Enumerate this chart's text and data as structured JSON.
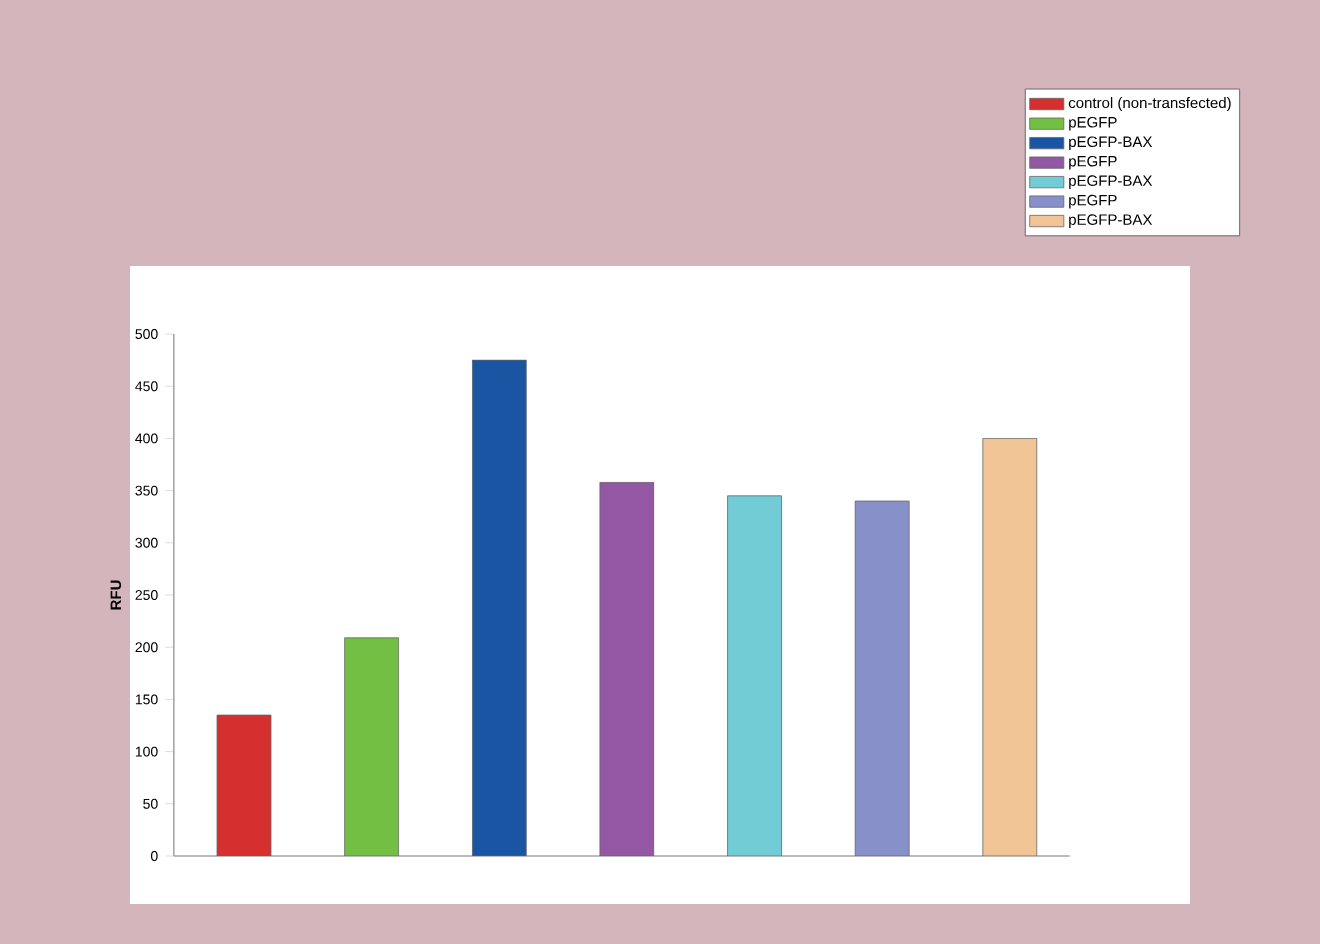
{
  "chart_data": {
    "type": "bar",
    "ylabel": "RFU",
    "categories": [
      null,
      null,
      null,
      null,
      null,
      null,
      null
    ],
    "series": [
      {
        "name": "control (non-transfected)",
        "color": "#d62f2f",
        "values": [
          135,
          null,
          null,
          null,
          null,
          null,
          null
        ]
      },
      {
        "name": "pEGFP",
        "color": "#72bf44",
        "values": [
          null,
          209,
          null,
          null,
          null,
          null,
          null
        ]
      },
      {
        "name": "pEGFP-BAX",
        "color": "#1a55a3",
        "values": [
          null,
          null,
          475,
          null,
          null,
          null,
          null
        ]
      },
      {
        "name": "pEGFP",
        "color": "#9457a4",
        "values": [
          null,
          null,
          null,
          358,
          null,
          null,
          null
        ]
      },
      {
        "name": "pEGFP-BAX",
        "color": "#72ccd6",
        "values": [
          null,
          null,
          null,
          null,
          345,
          null,
          null
        ]
      },
      {
        "name": "pEGFP",
        "color": "#8890c9",
        "values": [
          null,
          null,
          null,
          null,
          null,
          340,
          null
        ]
      },
      {
        "name": "pEGFP-BAX",
        "color": "#f0c494",
        "values": [
          null,
          null,
          null,
          null,
          null,
          null,
          400
        ]
      }
    ],
    "ylim": [
      0,
      500
    ],
    "yticks": [
      0,
      50,
      100,
      150,
      200,
      250,
      300,
      350,
      400,
      450,
      500
    ],
    "legend": "top right",
    "grid": false
  }
}
